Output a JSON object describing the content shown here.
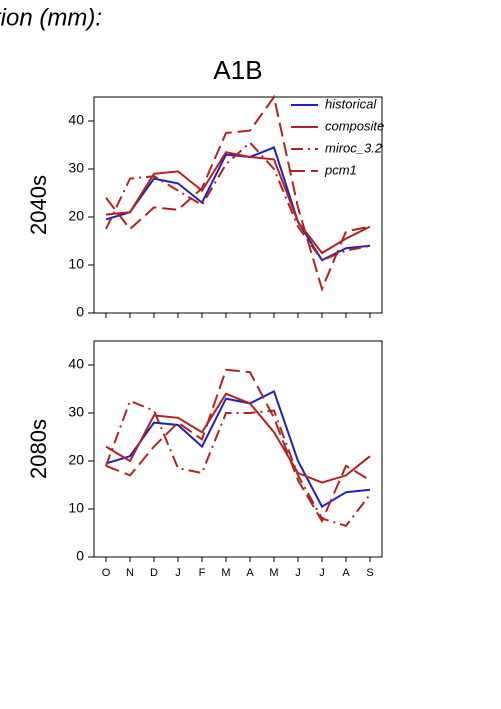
{
  "page_title": "tion (mm):",
  "title": "A1B",
  "chart_data": [
    {
      "type": "line",
      "ylabel": "2040s",
      "legend": "upper right",
      "categories": [
        null,
        null,
        null,
        null,
        null,
        null,
        null,
        null,
        null,
        null,
        null,
        null
      ],
      "ylim": [
        0,
        45
      ],
      "yticks": [
        0,
        10,
        20,
        30,
        40
      ],
      "series": [
        {
          "name": "historical",
          "color": "#2020c0",
          "dash": "solid",
          "values": [
            19.5,
            21,
            28,
            27,
            23,
            33,
            32.5,
            34.5,
            19,
            11,
            13.5,
            14
          ]
        },
        {
          "name": "composite",
          "color": "#b22222",
          "dash": "solid",
          "values": [
            20.5,
            21,
            29,
            29.5,
            25.5,
            33.5,
            32.5,
            32,
            19,
            12.5,
            15.5,
            18
          ]
        },
        {
          "name": "miroc_3.2",
          "color": "#b22222",
          "dash": "dashdot",
          "values": [
            17.5,
            28,
            28.5,
            25.5,
            22.5,
            31,
            35.5,
            30,
            18,
            11,
            13,
            14
          ]
        },
        {
          "name": "pcm1",
          "color": "#b22222",
          "dash": "dashed",
          "values": [
            24,
            17.5,
            22,
            21.5,
            26,
            37.5,
            38,
            45,
            22,
            5,
            17,
            18
          ]
        }
      ]
    },
    {
      "type": "line",
      "ylabel": "2080s",
      "categories": [
        "O",
        "N",
        "D",
        "J",
        "F",
        "M",
        "A",
        "M",
        "J",
        "J",
        "A",
        "S"
      ],
      "ylim": [
        0,
        45
      ],
      "yticks": [
        0,
        10,
        20,
        30,
        40
      ],
      "series": [
        {
          "name": "historical",
          "color": "#2020c0",
          "dash": "solid",
          "values": [
            19.5,
            21,
            28,
            27.5,
            23,
            33,
            32,
            34.5,
            20,
            10.5,
            13.5,
            14
          ]
        },
        {
          "name": "composite",
          "color": "#b22222",
          "dash": "solid",
          "values": [
            23,
            20,
            29.5,
            29,
            26,
            34,
            32,
            26,
            17.5,
            15.5,
            17,
            21
          ]
        },
        {
          "name": "miroc_3.2",
          "color": "#b22222",
          "dash": "dashdot",
          "values": [
            19,
            32.5,
            30.5,
            18.5,
            17.5,
            30,
            30,
            30.5,
            17,
            8,
            6.5,
            13
          ]
        },
        {
          "name": "pcm1",
          "color": "#b22222",
          "dash": "dashed",
          "values": [
            19,
            17,
            23,
            28,
            24.5,
            39,
            38.5,
            29,
            16,
            7.5,
            19,
            16
          ]
        }
      ]
    }
  ]
}
